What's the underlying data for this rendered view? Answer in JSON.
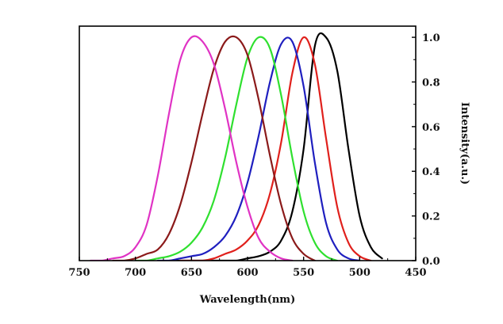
{
  "chart_data": {
    "type": "line",
    "title": "",
    "xlabel": "Wavelength(nm)",
    "ylabel": "Intensity(a.u.)",
    "xlim": [
      750,
      450
    ],
    "ylim": [
      0.0,
      1.05
    ],
    "x_reversed": true,
    "x_ticks": [
      750,
      700,
      650,
      600,
      550,
      500,
      450
    ],
    "x_tick_labels": [
      "750",
      "700",
      "650",
      "600",
      "550",
      "500",
      "450"
    ],
    "y_ticks": [
      0.0,
      0.2,
      0.4,
      0.6,
      0.8,
      1.0
    ],
    "y_tick_labels": [
      "0.0",
      "0.2",
      "0.4",
      "0.6",
      "0.8",
      "1.0"
    ],
    "y_axis_side": "right",
    "grid": false,
    "legend": "none",
    "series": [
      {
        "color": "#000000",
        "x": [
          550,
          540,
          530,
          520,
          510,
          500,
          490,
          480,
          560,
          570,
          580,
          590,
          600,
          610,
          620,
          630,
          640,
          650,
          660,
          670
        ],
        "y": [
          0.5,
          0.96,
          1.0,
          0.85,
          0.5,
          0.2,
          0.06,
          0.01,
          0.22,
          0.09,
          0.04,
          0.02,
          0.01,
          0.0,
          0.0,
          0.0,
          0.0,
          0.0,
          0.0,
          0.0
        ]
      },
      {
        "color": "#e0201c",
        "x": [
          600,
          590,
          580,
          570,
          560,
          550,
          540,
          530,
          520,
          510,
          500,
          490,
          610,
          620,
          630,
          640,
          650,
          660
        ],
        "y": [
          0.09,
          0.16,
          0.3,
          0.53,
          0.84,
          1.0,
          0.88,
          0.55,
          0.24,
          0.08,
          0.02,
          0.0,
          0.05,
          0.03,
          0.01,
          0.0,
          0.0,
          0.0
        ]
      },
      {
        "color": "#1f1fbf",
        "x": [
          620,
          610,
          600,
          590,
          580,
          570,
          560,
          550,
          540,
          530,
          520,
          510,
          500,
          630,
          640,
          650,
          660,
          670,
          680
        ],
        "y": [
          0.11,
          0.2,
          0.35,
          0.56,
          0.8,
          0.97,
          0.98,
          0.78,
          0.44,
          0.17,
          0.05,
          0.01,
          0.0,
          0.06,
          0.03,
          0.02,
          0.01,
          0.0,
          0.0
        ]
      },
      {
        "color": "#2fe02f",
        "x": [
          650,
          640,
          630,
          620,
          610,
          600,
          590,
          580,
          570,
          560,
          550,
          540,
          530,
          520,
          660,
          670,
          680,
          690,
          700
        ],
        "y": [
          0.08,
          0.15,
          0.27,
          0.46,
          0.7,
          0.91,
          1.0,
          0.95,
          0.74,
          0.46,
          0.22,
          0.08,
          0.02,
          0.0,
          0.04,
          0.02,
          0.01,
          0.0,
          0.0
        ]
      },
      {
        "color": "#8b1a1a",
        "x": [
          680,
          670,
          660,
          650,
          640,
          630,
          620,
          610,
          600,
          590,
          580,
          570,
          560,
          550,
          540,
          690,
          700,
          710,
          720
        ],
        "y": [
          0.05,
          0.12,
          0.25,
          0.44,
          0.66,
          0.86,
          0.98,
          1.0,
          0.92,
          0.72,
          0.47,
          0.25,
          0.1,
          0.03,
          0.0,
          0.03,
          0.01,
          0.0,
          0.0
        ]
      },
      {
        "color": "#e033c4",
        "x": [
          700,
          690,
          680,
          670,
          660,
          650,
          640,
          630,
          620,
          610,
          600,
          590,
          580,
          570,
          560,
          710,
          720,
          730,
          740
        ],
        "y": [
          0.06,
          0.16,
          0.38,
          0.66,
          0.9,
          1.0,
          0.98,
          0.88,
          0.68,
          0.44,
          0.24,
          0.1,
          0.04,
          0.01,
          0.0,
          0.02,
          0.01,
          0.0,
          0.0
        ]
      }
    ]
  }
}
